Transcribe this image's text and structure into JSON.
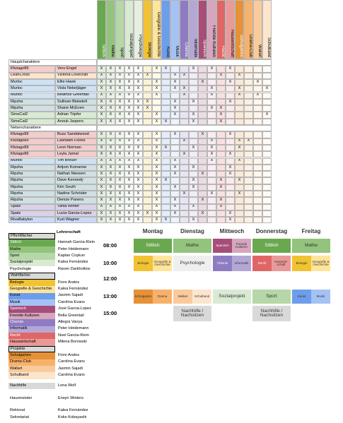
{
  "subjects": [
    {
      "name": "Sittlich",
      "color": "#6aa84f"
    },
    {
      "name": "Mathe",
      "color": "#93c47d"
    },
    {
      "name": "Sport",
      "color": "#b6d7a8"
    },
    {
      "name": "Sozialprojekt",
      "color": "#d9ead3"
    },
    {
      "name": "Psychologie",
      "color": "#e6efe0"
    },
    {
      "name": "Biologie",
      "color": "#f1c232"
    },
    {
      "name": "Geografie & Geschichte",
      "color": "#ffe599"
    },
    {
      "name": "Kunst",
      "color": "#6d9eeb"
    },
    {
      "name": "Musik",
      "color": "#a4c2f4"
    },
    {
      "name": "Chemie",
      "color": "#8e7cc3"
    },
    {
      "name": "Informatik",
      "color": "#b4a7d6"
    },
    {
      "name": "Spanisch",
      "color": "#a64d79"
    },
    {
      "name": "Fremde Kulturen",
      "color": "#d5a6bd"
    },
    {
      "name": "Recht",
      "color": "#e06666"
    },
    {
      "name": "Hauswirtschaft",
      "color": "#ea9999"
    },
    {
      "name": "Schulgarten",
      "color": "#e69138"
    },
    {
      "name": "Drama-Club",
      "color": "#f6b26b"
    },
    {
      "name": "Wallart",
      "color": "#f9cb9c"
    },
    {
      "name": "Schulband",
      "color": "#fce5cd"
    }
  ],
  "sections": [
    {
      "title": "Hauptcharaktere",
      "rows": [
        {
          "player": "Kfutago89",
          "character": "Vero Engel",
          "color": "#f4cccc",
          "marks": [
            "X",
            "X",
            "X",
            "X",
            "X",
            null,
            "X",
            "X",
            null,
            null,
            "X",
            null,
            "X",
            null,
            "X",
            null,
            null,
            null,
            null
          ]
        },
        {
          "player": "LeahCross",
          "character": "Victoria Lovecraft",
          "color": "#fce5cd",
          "marks": [
            "X",
            "X",
            "X",
            "X",
            "X",
            "X",
            null,
            null,
            "X",
            "X",
            null,
            null,
            null,
            "X",
            null,
            "X",
            null,
            null,
            null
          ]
        },
        {
          "player": "Murloc",
          "character": "Ellie Hawk",
          "color": "#cfe2f3",
          "marks": [
            "X",
            "X",
            "X",
            "X",
            "X",
            null,
            "X",
            null,
            "X",
            null,
            null,
            "X",
            null,
            null,
            "X",
            null,
            null,
            "X",
            null
          ]
        },
        {
          "player": "Murloc",
          "character": "Viola Nebeljäger",
          "color": "#cfe2f3",
          "marks": [
            "X",
            "X",
            "X",
            "X",
            "X",
            null,
            "X",
            null,
            "X",
            "X",
            null,
            null,
            "X",
            null,
            null,
            "X",
            null,
            null,
            "X"
          ]
        },
        {
          "player": "Murloc",
          "character": "Beatrice Greentail",
          "color": "#cfe2f3",
          "marks": [
            "X",
            "X",
            "X",
            "X",
            "X",
            null,
            "X",
            null,
            null,
            "X",
            null,
            null,
            "X",
            null,
            null,
            "X",
            null,
            "X",
            null
          ]
        },
        {
          "player": "Ripzha",
          "character": "Sullivan Blaisdell",
          "color": "#d0e0e3",
          "marks": [
            "X",
            "X",
            "X",
            "X",
            "X",
            "X",
            null,
            null,
            "X",
            null,
            "X",
            null,
            null,
            null,
            "X",
            null,
            null,
            null,
            null
          ]
        },
        {
          "player": "Ripzha",
          "character": "Shane McEven",
          "color": "#d0e0e3",
          "marks": [
            "X",
            "X",
            "X",
            "X",
            "X",
            "X",
            null,
            null,
            "X",
            null,
            null,
            null,
            "X",
            "X",
            null,
            null,
            null,
            null,
            null
          ]
        },
        {
          "player": "SimsCat2",
          "character": "Adrian Töpfer",
          "color": "#d9ead3",
          "marks": [
            "X",
            "X",
            "X",
            "X",
            "X",
            null,
            "X",
            null,
            "X",
            null,
            "X",
            null,
            null,
            "X",
            null,
            null,
            null,
            null,
            "X"
          ]
        },
        {
          "player": "SimsCat2",
          "character": "Anouk Jaspers",
          "color": "#d9ead3",
          "marks": [
            "X",
            "X",
            "X",
            "X",
            "X",
            null,
            "X",
            "X",
            null,
            null,
            "X",
            null,
            null,
            "X",
            null,
            null,
            null,
            null,
            null
          ]
        }
      ]
    },
    {
      "title": "Nebencharaktere",
      "rows": [
        {
          "player": "Kfutago89",
          "character": "Buzz Sandalwood",
          "color": "#f4cccc",
          "marks": [
            "X",
            "X",
            "X",
            "X",
            "X",
            null,
            "X",
            null,
            "X",
            null,
            null,
            "X",
            null,
            null,
            "X",
            null,
            null,
            null,
            null
          ]
        },
        {
          "player": "Kfutago89",
          "character": "Lashawn Flores",
          "color": "#f4cccc",
          "marks": [
            "X",
            "X",
            "X",
            "X",
            "X",
            null,
            "X",
            null,
            null,
            "X",
            null,
            null,
            "X",
            null,
            null,
            "X",
            "X",
            null,
            null
          ]
        },
        {
          "player": "Kfutago89",
          "character": "Leon Norman",
          "color": "#f4cccc",
          "marks": [
            "X",
            "X",
            "X",
            "X",
            "X",
            null,
            "X",
            "X",
            null,
            null,
            "X",
            null,
            "X",
            null,
            null,
            "X",
            null,
            null,
            null
          ]
        },
        {
          "player": "Kfutago89",
          "character": "Leyla Jamal",
          "color": "#f4cccc",
          "marks": [
            "X",
            "X",
            "X",
            "X",
            "X",
            null,
            "X",
            null,
            null,
            "X",
            null,
            null,
            "X",
            null,
            "X",
            null,
            null,
            null,
            null
          ]
        },
        {
          "player": "Murloc",
          "character": "Tim Breuer",
          "color": "#cfe2f3",
          "marks": [
            "X",
            "X",
            "X",
            "X",
            "X",
            null,
            "X",
            null,
            "X",
            null,
            null,
            null,
            "X",
            null,
            null,
            "X",
            null,
            null,
            null
          ]
        },
        {
          "player": "Ripzha",
          "character": "Artjom Komarow",
          "color": "#d0e0e3",
          "marks": [
            "X",
            "X",
            "X",
            "X",
            "X",
            null,
            "X",
            null,
            "X",
            null,
            "X",
            null,
            null,
            null,
            "X",
            null,
            null,
            null,
            null
          ]
        },
        {
          "player": "Ripzha",
          "character": "Nathan Niessen",
          "color": "#d0e0e3",
          "marks": [
            "X",
            "X",
            "X",
            "X",
            "X",
            null,
            "X",
            null,
            "X",
            null,
            null,
            "X",
            null,
            null,
            "X",
            null,
            null,
            null,
            null
          ]
        },
        {
          "player": "Ripzha",
          "character": "Dave Kennedy",
          "color": "#d0e0e3",
          "marks": [
            "X",
            "X",
            "X",
            "X",
            "X",
            null,
            "X",
            "X",
            null,
            null,
            "X",
            null,
            null,
            "X",
            null,
            "X",
            null,
            null,
            null
          ]
        },
        {
          "player": "Ripzha",
          "character": "Kim South",
          "color": "#d0e0e3",
          "marks": [
            "X",
            "X",
            "X",
            "X",
            "X",
            null,
            "X",
            null,
            "X",
            null,
            "X",
            null,
            null,
            "X",
            null,
            null,
            null,
            null,
            null
          ]
        },
        {
          "player": "Ripzha",
          "character": "Nadine Schröder",
          "color": "#d0e0e3",
          "marks": [
            "X",
            "X",
            "X",
            "X",
            "X",
            null,
            "X",
            null,
            null,
            "X",
            null,
            null,
            "X",
            null,
            null,
            "X",
            null,
            null,
            null
          ]
        },
        {
          "player": "Ripzha",
          "character": "Denize Panera",
          "color": "#d0e0e3",
          "marks": [
            "X",
            "X",
            "X",
            "X",
            "X",
            null,
            "X",
            null,
            "X",
            null,
            null,
            "X",
            null,
            "X",
            null,
            null,
            null,
            null,
            null
          ]
        },
        {
          "player": "Spatz",
          "character": "Tania Winter",
          "color": "#d9d2e9",
          "marks": [
            "X",
            "X",
            "X",
            "X",
            "X",
            null,
            "X",
            null,
            "X",
            null,
            "X",
            null,
            null,
            "X",
            null,
            null,
            null,
            null,
            null
          ]
        },
        {
          "player": "Spatz",
          "character": "Lucia Garcia-Lopez",
          "color": "#d9d2e9",
          "marks": [
            "X",
            "X",
            "X",
            "X",
            "X",
            "X",
            "X",
            null,
            "X",
            null,
            null,
            "X",
            null,
            null,
            "X",
            null,
            null,
            null,
            null
          ]
        },
        {
          "player": "RivaBabylon",
          "character": "Kurt Wagner",
          "color": "#c9daf8",
          "marks": [
            "X",
            "X",
            "X",
            "X",
            "X",
            null,
            "X",
            "X",
            null,
            null,
            "X",
            null,
            null,
            null,
            "X",
            null,
            null,
            null,
            null
          ]
        }
      ]
    }
  ],
  "legend": {
    "teacher_header": "Lehrerschaft",
    "groups": [
      {
        "title": "Pflichtfächer",
        "items": [
          {
            "subject": "Sittlich",
            "teacher": "Hannah Garcia-Klein",
            "color": "#6aa84f"
          },
          {
            "subject": "Mathe",
            "teacher": "Peter Heidemann",
            "color": "#93c47d"
          },
          {
            "subject": "Sport",
            "teacher": "Kaplan Coşkun",
            "color": "#b6d7a8"
          },
          {
            "subject": "Sozialprojekt",
            "teacher": "Kalea Fernández",
            "color": "#d9ead3"
          },
          {
            "subject": "Psychologie",
            "teacher": "Raven Darkhollow",
            "color": "#ffffff"
          }
        ]
      },
      {
        "title": "Wahlfächer",
        "items": [
          {
            "subject": "Biologie",
            "teacher": "Fiore Aratos",
            "color": "#f1c232"
          },
          {
            "subject": "Geografie & Geschichte",
            "teacher": "Kalea Fernández",
            "color": "#ffe599"
          },
          {
            "subject": "Kunst",
            "teacher": "Jasmin Sajadi",
            "color": "#6d9eeb"
          },
          {
            "subject": "Musik",
            "teacher": "Carolina Evans",
            "color": "#a4c2f4"
          },
          {
            "subject": "Spanisch",
            "teacher": "José Garcia-Lopez",
            "color": "#a64d79"
          },
          {
            "subject": "Fremde Kulturen",
            "teacher": "Bella Greentail",
            "color": "#d5a6bd"
          },
          {
            "subject": "Chemie",
            "teacher": "Allegra Vanya",
            "color": "#8e7cc3"
          },
          {
            "subject": "Informatik",
            "teacher": "Peter Heidemann",
            "color": "#b4a7d6"
          },
          {
            "subject": "Recht",
            "teacher": "Noel Garcia-Klein",
            "color": "#e06666"
          },
          {
            "subject": "Hauswirtschaft",
            "teacher": "Milena Borowski",
            "color": "#ea9999"
          }
        ]
      },
      {
        "title": "Projekte",
        "items": [
          {
            "subject": "Schulgarten",
            "teacher": "Fiore Aratos",
            "color": "#e69138"
          },
          {
            "subject": "Drama-Club",
            "teacher": "Carolina Evans",
            "color": "#f6b26b"
          },
          {
            "subject": "Wallart",
            "teacher": "Jasmin Sajadi",
            "color": "#f9cb9c"
          },
          {
            "subject": "Schulband",
            "teacher": "Carolina Evans",
            "color": "#fce5cd"
          }
        ]
      }
    ],
    "staff": [
      {
        "role": "Nachhilfe",
        "name": "Lena Wolf",
        "color": "#d9d9d9"
      },
      {
        "role": "Hausmeister",
        "name": "Erwyn Winters",
        "color": "#ffffff"
      },
      {
        "role": "Rektorat",
        "name": "Kalea Fernández",
        "color": "#ffffff"
      },
      {
        "role": "Sekretariat",
        "name": "Koko Kobayashi",
        "color": "#ffffff"
      }
    ]
  },
  "timetable": {
    "days": [
      "Montag",
      "Dienstag",
      "Mittwoch",
      "Donnerstag",
      "Freitag"
    ],
    "times": [
      "08:00",
      "10:00",
      "12:00",
      "13:00",
      "15:00"
    ],
    "rows": [
      [
        [
          {
            "label": "Sittlich",
            "color": "#6aa84f"
          }
        ],
        [
          {
            "label": "Mathe",
            "color": "#93c47d"
          }
        ],
        [
          {
            "label": "Spanisch",
            "color": "#a64d79"
          },
          {
            "label": "Fremde Kulturen",
            "color": "#d5a6bd"
          }
        ],
        [
          {
            "label": "Sittlich",
            "color": "#6aa84f"
          }
        ],
        [
          {
            "label": "Mathe",
            "color": "#93c47d"
          }
        ]
      ],
      [
        [
          {
            "label": "Biologie",
            "color": "#f1c232"
          },
          {
            "label": "Geografie & Geschichte",
            "color": "#ffe599"
          }
        ],
        [
          {
            "label": "Psychologie",
            "color": "#efefef"
          }
        ],
        [
          {
            "label": "Chemie",
            "color": "#8e7cc3"
          },
          {
            "label": "Informatik",
            "color": "#b4a7d6"
          }
        ],
        [
          {
            "label": "Recht",
            "color": "#e06666"
          },
          {
            "label": "Hauswirt-schaft",
            "color": "#ea9999"
          }
        ],
        [
          {
            "label": "Biologie",
            "color": "#f1c232"
          },
          {
            "label": "Geografie & Geschichte",
            "color": "#ffe599"
          }
        ]
      ],
      [
        null,
        null,
        null,
        null,
        null
      ],
      [
        [
          {
            "label": "Schulgarten",
            "color": "#e69138"
          },
          {
            "label": "Drama",
            "color": "#f6b26b"
          }
        ],
        [
          {
            "label": "Wallart",
            "color": "#f9cb9c"
          },
          {
            "label": "Schulband",
            "color": "#fce5cd"
          }
        ],
        [
          {
            "label": "Sozialprojekt",
            "color": "#d9ead3"
          }
        ],
        [
          {
            "label": "Sport",
            "color": "#b6d7a8"
          }
        ],
        [
          {
            "label": "Kunst",
            "color": "#6d9eeb"
          },
          {
            "label": "Musik",
            "color": "#a4c2f4"
          }
        ]
      ],
      [
        null,
        [
          {
            "label": "Nachhilfe / Nachsitzen",
            "color": "#d9d9d9"
          }
        ],
        null,
        [
          {
            "label": "Nachhilfe / Nachsitzen",
            "color": "#d9d9d9"
          }
        ],
        null
      ]
    ]
  }
}
